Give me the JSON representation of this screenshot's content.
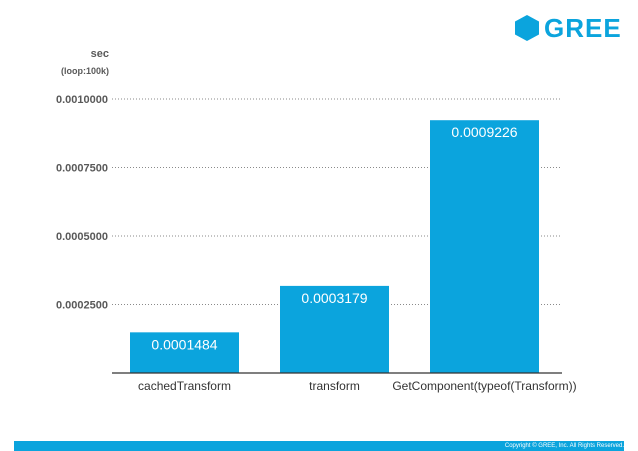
{
  "brand": {
    "name": "GREE",
    "color": "#0ba4dd"
  },
  "chart_data": {
    "type": "bar",
    "ylabel": "sec",
    "ylabel_note": "(loop:100k)",
    "categories": [
      "cachedTransform",
      "transform",
      "GetComponent(typeof(Transform))"
    ],
    "values": [
      0.0001484,
      0.0003179,
      0.0009226
    ],
    "data_labels": [
      "0.0001484",
      "0.0003179",
      "0.0009226"
    ],
    "yticks": [
      "0.0002500",
      "0.0005000",
      "0.0007500",
      "0.0010000"
    ],
    "ytick_values": [
      0.00025,
      0.0005,
      0.00075,
      0.001
    ],
    "ylim": [
      0,
      0.001
    ],
    "grid": true,
    "bar_color": "#0ba4dd"
  },
  "footer": {
    "copyright": "Copyright © GREE, Inc. All Rights Reserved."
  }
}
